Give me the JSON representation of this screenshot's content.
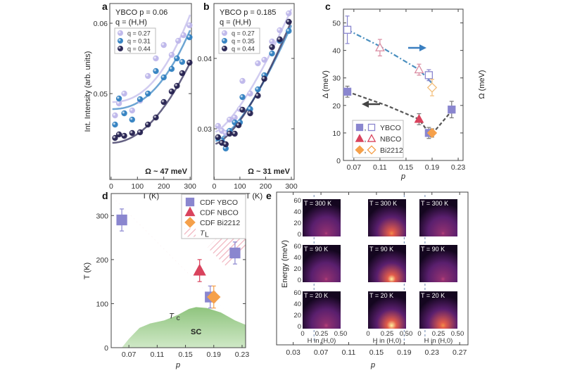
{
  "chart_data": [
    {
      "panel": "a",
      "type": "scatter",
      "title_lines": [
        "YBCO p = 0.06",
        "q = (H,H)"
      ],
      "annotation": "Ω ~ 47 meV",
      "xlabel": "T (K)",
      "ylabel": "Int. Intensity (arb. units)",
      "xlim": [
        -5,
        305
      ],
      "ylim": [
        0.0378,
        0.0628
      ],
      "xticks": [
        "0",
        "100",
        "200",
        "300"
      ],
      "yticks": [
        "0.05",
        "0.06"
      ],
      "legend_position": "top-left",
      "series": [
        {
          "name": "q = 0.27",
          "color": "#bdb6ea",
          "x": [
            15,
            30,
            50,
            80,
            110,
            140,
            170,
            200,
            230,
            255,
            275,
            298
          ],
          "y": [
            0.0469,
            0.0486,
            0.05,
            0.0476,
            0.049,
            0.0525,
            0.055,
            0.0569,
            0.0555,
            0.0575,
            0.0583,
            0.0597
          ]
        },
        {
          "name": "q = 0.31",
          "color": "#2f7fc0",
          "x": [
            15,
            30,
            50,
            80,
            110,
            140,
            170,
            200,
            230,
            250,
            270,
            298
          ],
          "y": [
            0.0456,
            0.0493,
            0.0472,
            0.0463,
            0.0492,
            0.05,
            0.0532,
            0.0523,
            0.0535,
            0.055,
            0.0545,
            0.058
          ]
        },
        {
          "name": "q = 0.44",
          "color": "#24204f",
          "x": [
            15,
            30,
            50,
            80,
            110,
            140,
            170,
            200,
            230,
            250,
            270,
            298
          ],
          "y": [
            0.0437,
            0.0442,
            0.044,
            0.0444,
            0.0445,
            0.0456,
            0.0466,
            0.0488,
            0.0503,
            0.0511,
            0.0529,
            0.0544
          ]
        }
      ]
    },
    {
      "panel": "b",
      "type": "scatter",
      "title_lines": [
        "YBCO p = 0.185",
        "q = (H,H)"
      ],
      "annotation": "Ω ~ 31 meV",
      "xlabel": "T (K)",
      "xlim": [
        -1,
        311
      ],
      "ylim": [
        0.0228,
        0.0478
      ],
      "xticks": [
        "0",
        "100",
        "200",
        "300"
      ],
      "yticks": [
        "0.03",
        "0.04"
      ],
      "legend_position": "top-left",
      "series": [
        {
          "name": "q = 0.27",
          "color": "#bdb6ea",
          "x": [
            15,
            30,
            45,
            60,
            80,
            100,
            110,
            140,
            170,
            195,
            225,
            255,
            290
          ],
          "y": [
            0.0304,
            0.0297,
            0.0294,
            0.0313,
            0.0316,
            0.0328,
            0.0368,
            0.035,
            0.0393,
            0.0398,
            0.0424,
            0.044,
            0.0464
          ]
        },
        {
          "name": "q = 0.35",
          "color": "#2f7fc0",
          "x": [
            15,
            30,
            45,
            60,
            80,
            100,
            110,
            140,
            170,
            195,
            225,
            255,
            290
          ],
          "y": [
            0.0287,
            0.0283,
            0.0272,
            0.0297,
            0.0309,
            0.0309,
            0.0345,
            0.0328,
            0.0356,
            0.0376,
            0.0407,
            0.0425,
            0.0439
          ]
        },
        {
          "name": "q = 0.44",
          "color": "#24204f",
          "x": [
            15,
            30,
            45,
            60,
            80,
            95,
            110,
            140,
            170,
            195,
            225,
            255,
            290
          ],
          "y": [
            0.0288,
            0.028,
            0.0278,
            0.0293,
            0.0293,
            0.0305,
            0.0327,
            0.0322,
            0.0347,
            0.0371,
            0.0416,
            0.0427,
            0.0452
          ]
        }
      ]
    },
    {
      "panel": "c",
      "type": "scatter",
      "xlabel": "p",
      "ylabel": "Δ (meV)",
      "ylabel_right": "Ω (meV)",
      "xlim": [
        0.054,
        0.2375
      ],
      "ylim": [
        0,
        55
      ],
      "xticks": [
        "0.07",
        "0.11",
        "0.15",
        "0.19",
        "0.23"
      ],
      "yticks": [
        "0",
        "10",
        "20",
        "30",
        "40",
        "50"
      ],
      "legend_position": "bottom-left",
      "legend": [
        {
          "label": "YBCO",
          "sep": ",",
          "color": "#8a86cf",
          "marker": "square"
        },
        {
          "label": "NBCO",
          "sep": ",",
          "color": "#d9435d",
          "marker": "triangle"
        },
        {
          "label": "Bi2212",
          "sep": ",",
          "color": "#f5a04a",
          "marker": "diamond"
        }
      ],
      "series": [
        {
          "material": "YBCO",
          "quantity": "Δ",
          "filled": true,
          "marker": "square",
          "color": "#8a86cf",
          "x": [
            0.06,
            0.185,
            0.22
          ],
          "y": [
            25,
            10,
            18.5
          ],
          "err": [
            2,
            2,
            3
          ]
        },
        {
          "material": "NBCO",
          "quantity": "Δ",
          "filled": true,
          "marker": "triangle",
          "color": "#d9435d",
          "x": [
            0.17
          ],
          "y": [
            15
          ],
          "err": [
            2
          ]
        },
        {
          "material": "Bi2212",
          "quantity": "Δ",
          "filled": true,
          "marker": "diamond",
          "color": "#f5a04a",
          "x": [
            0.19
          ],
          "y": [
            10
          ],
          "err": [
            1.5
          ]
        },
        {
          "material": "YBCO",
          "quantity": "Ω",
          "filled": false,
          "marker": "square",
          "color": "#8a86cf",
          "x": [
            0.06,
            0.185
          ],
          "y": [
            47.5,
            31
          ],
          "err": [
            5,
            2
          ]
        },
        {
          "material": "NBCO",
          "quantity": "Ω",
          "filled": false,
          "marker": "triangle",
          "color": "#d98aa0",
          "x": [
            0.11,
            0.17
          ],
          "y": [
            41,
            33
          ],
          "err": [
            3,
            2
          ]
        },
        {
          "material": "Bi2212",
          "quantity": "Ω",
          "filled": false,
          "marker": "diamond",
          "color": "#f2be7a",
          "x": [
            0.19
          ],
          "y": [
            26.5
          ],
          "err": [
            3
          ]
        }
      ],
      "guide_lines": [
        {
          "style": "dash-dot",
          "color": "#4a8fbf",
          "x": [
            0.06,
            0.11,
            0.17,
            0.19
          ],
          "y": [
            47.5,
            41.5,
            33,
            28
          ]
        },
        {
          "style": "dashed",
          "color": "#555555",
          "x": [
            0.06,
            0.12,
            0.17,
            0.185,
            0.195,
            0.22
          ],
          "y": [
            25,
            20,
            15,
            10,
            11,
            18
          ]
        }
      ],
      "arrows": [
        {
          "direction": "right",
          "color": "#3a7fc0",
          "points_to": "Ω axis"
        },
        {
          "direction": "left",
          "color": "#444444",
          "points_to": "Δ axis"
        }
      ]
    },
    {
      "panel": "d",
      "type": "scatter",
      "xlabel": "p",
      "ylabel": "T (K)",
      "xlim": [
        0.045,
        0.235
      ],
      "ylim": [
        0,
        350
      ],
      "xticks": [
        "0.07",
        "0.11",
        "0.15",
        "0.19",
        "0.23"
      ],
      "yticks": [
        "0",
        "100",
        "200",
        "300"
      ],
      "legend_position": "top-right",
      "legend": [
        {
          "label": "CDF YBCO",
          "color": "#8a86cf",
          "marker": "square"
        },
        {
          "label": "CDF NBCO",
          "color": "#d9435d",
          "marker": "triangle"
        },
        {
          "label": "CDF Bi2212",
          "color": "#f5a04a",
          "marker": "diamond"
        },
        {
          "label": "T",
          "sub": "L",
          "color": "#f0b4bf",
          "marker": "hatch"
        }
      ],
      "series": [
        {
          "name": "CDF YBCO",
          "marker": "square",
          "color": "#8a86cf",
          "x": [
            0.06,
            0.185,
            0.22
          ],
          "y": [
            290,
            115,
            215
          ],
          "err": [
            25,
            25,
            25
          ]
        },
        {
          "name": "CDF NBCO",
          "marker": "triangle",
          "color": "#d9435d",
          "x": [
            0.17
          ],
          "y": [
            175
          ],
          "err": [
            25
          ]
        },
        {
          "name": "CDF Bi2212",
          "marker": "diamond",
          "color": "#f5a04a",
          "x": [
            0.19
          ],
          "y": [
            115
          ],
          "err": [
            25
          ]
        }
      ],
      "tl_bands": [
        {
          "x": [
            0.045,
            0.19
          ],
          "y": [
            345,
            110
          ]
        },
        {
          "x": [
            0.195,
            0.235
          ],
          "y": [
            205,
            270
          ]
        }
      ],
      "sc_dome": {
        "label": "SC",
        "tc_label": "T",
        "tc_sub": "c",
        "color": "#8fc47e",
        "x": [
          0.06,
          0.07,
          0.085,
          0.1,
          0.12,
          0.14,
          0.155,
          0.165,
          0.18,
          0.2,
          0.22,
          0.235
        ],
        "y": [
          0,
          20,
          45,
          55,
          62,
          75,
          88,
          92,
          90,
          80,
          62,
          52
        ]
      }
    },
    {
      "panel": "e",
      "type": "heatmap",
      "xlabel": "p",
      "ylabel": "Energy (meV)",
      "xlim": [
        0.006,
        0.282
      ],
      "xticks": [
        "0.03",
        "0.07",
        "0.11",
        "0.15",
        "0.19",
        "0.23",
        "0.27"
      ],
      "inset_yticks": [
        "60",
        "40",
        "20",
        "0"
      ],
      "inset_xticks": [
        "0",
        "0.25",
        "0.50"
      ],
      "inset_xlabel": "H in (H,0)",
      "columns": [
        {
          "p": 0.06,
          "insets": [
            {
              "label": "T = 300 K",
              "intensity": 0.35
            },
            {
              "label": "T = 90 K",
              "intensity": 0.4
            },
            {
              "label": "T = 20 K",
              "intensity": 0.5
            }
          ]
        },
        {
          "p": 0.19,
          "insets": [
            {
              "label": "T = 300 K",
              "intensity": 0.55
            },
            {
              "label": "T = 90 K",
              "intensity": 0.85
            },
            {
              "label": "T = 20 K",
              "intensity": 1.0
            }
          ]
        },
        {
          "p": 0.22,
          "insets": [
            {
              "label": "T = 300 K",
              "intensity": 0.4
            },
            {
              "label": "T = 90 K",
              "intensity": 0.5
            },
            {
              "label": "T = 20 K",
              "intensity": 0.6
            }
          ]
        }
      ]
    }
  ]
}
